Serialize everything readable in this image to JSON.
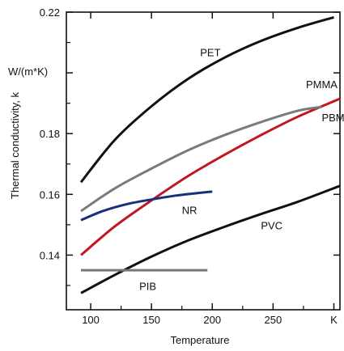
{
  "chart_data": {
    "type": "line",
    "title": "",
    "xlabel": "Temperature",
    "ylabel": "Thermal conductivity, k",
    "y_unit": "W/(m*K)",
    "x_unit": "K",
    "xlim": [
      80,
      305
    ],
    "ylim": [
      0.122,
      0.22
    ],
    "x_ticks": [
      100,
      150,
      200,
      250
    ],
    "x_unit_tick": 300,
    "y_ticks": [
      0.14,
      0.16,
      0.18,
      0.22
    ],
    "y_unit_tick": 0.2,
    "grid": false,
    "legend": "none",
    "series": [
      {
        "name": "PET",
        "color": "#111111",
        "x": [
          92,
          120,
          150,
          180,
          210,
          240,
          270,
          300
        ],
        "y": [
          0.164,
          0.178,
          0.189,
          0.198,
          0.205,
          0.2105,
          0.2148,
          0.2183
        ]
      },
      {
        "name": "PMMA",
        "color": "#c0181f",
        "x": [
          92,
          120,
          150,
          180,
          210,
          240,
          270,
          305
        ],
        "y": [
          0.14,
          0.1495,
          0.158,
          0.166,
          0.173,
          0.1795,
          0.1855,
          0.1915
        ]
      },
      {
        "name": "PBMA",
        "color": "#7a7a7a",
        "x": [
          92,
          120,
          150,
          180,
          210,
          240,
          270,
          290
        ],
        "y": [
          0.1545,
          0.162,
          0.1685,
          0.1745,
          0.1795,
          0.1838,
          0.1875,
          0.1888
        ]
      },
      {
        "name": "NR",
        "color": "#1a2f7a",
        "x": [
          92,
          110,
          130,
          150,
          170,
          190,
          200
        ],
        "y": [
          0.1515,
          0.1545,
          0.1568,
          0.1583,
          0.1596,
          0.1605,
          0.1609
        ]
      },
      {
        "name": "PVC",
        "color": "#111111",
        "x": [
          92,
          120,
          150,
          180,
          210,
          240,
          270,
          305
        ],
        "y": [
          0.1275,
          0.1335,
          0.1395,
          0.1448,
          0.1493,
          0.1535,
          0.1575,
          0.1628
        ]
      },
      {
        "name": "PIB",
        "color": "#777777",
        "x": [
          92,
          196
        ],
        "y": [
          0.135,
          0.135
        ]
      }
    ],
    "annotations": [
      {
        "text": "PET",
        "x": 190,
        "y": 0.2055
      },
      {
        "text": "PMMA",
        "x": 277,
        "y": 0.195
      },
      {
        "text": "PBMA",
        "x": 290,
        "y": 0.184
      },
      {
        "text": "NR",
        "x": 175,
        "y": 0.1535
      },
      {
        "text": "PVC",
        "x": 240,
        "y": 0.1485
      },
      {
        "text": "PIB",
        "x": 140,
        "y": 0.1285
      }
    ]
  }
}
